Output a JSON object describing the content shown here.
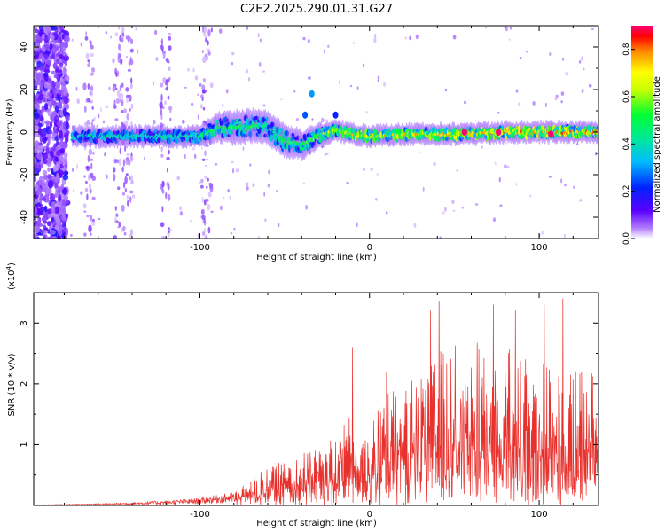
{
  "chart_data": [
    {
      "type": "heatmap",
      "title": "C2E2.2025.290.01.31.G27",
      "xlabel": "Height of straight line (km)",
      "ylabel": "Frequency (Hz)",
      "xlim": [
        -198,
        135
      ],
      "ylim": [
        -50,
        50
      ],
      "x_ticks": [
        -100,
        0,
        100
      ],
      "y_ticks": [
        -40,
        -20,
        0,
        20,
        40
      ],
      "colorbar": {
        "label": "Normalized spectral amplitude",
        "range": [
          0.0,
          0.9
        ],
        "ticks": [
          0.0,
          0.2,
          0.4,
          0.6,
          0.8
        ],
        "tick_labels": [
          "0.0",
          "0.2",
          "0.4",
          "0.6",
          "0.8"
        ]
      },
      "ridge": {
        "start_x": -175,
        "x": [
          -175,
          -150,
          -120,
          -100,
          -90,
          -80,
          -70,
          -60,
          -50,
          -40,
          -30,
          -20,
          -10,
          0,
          20,
          40,
          60,
          80,
          100,
          120,
          135
        ],
        "center_hz": [
          -2,
          -2,
          -2,
          -2,
          2,
          2,
          3,
          2,
          -4,
          -6,
          -2,
          1,
          -1,
          -2,
          -1,
          -1,
          -1,
          0,
          0,
          0,
          0
        ],
        "halfwidth_hz": [
          3,
          3,
          3,
          3,
          5,
          6,
          6,
          6,
          6,
          5,
          4,
          3,
          3,
          3,
          3,
          3,
          3,
          3,
          3,
          3,
          3
        ],
        "peak_amplitude": [
          0.45,
          0.45,
          0.45,
          0.5,
          0.55,
          0.55,
          0.55,
          0.5,
          0.55,
          0.55,
          0.6,
          0.7,
          0.75,
          0.75,
          0.75,
          0.75,
          0.8,
          0.8,
          0.8,
          0.8,
          0.8
        ]
      },
      "features": [
        {
          "x": -34,
          "y_hz": 18,
          "amplitude": 0.3,
          "note": "isolated blob"
        },
        {
          "x": -38,
          "y_hz": 8,
          "amplitude": 0.25,
          "note": "faint streak"
        },
        {
          "x": -20,
          "y_hz": 8,
          "amplitude": 0.2,
          "note": "faint streak"
        },
        {
          "x": 56,
          "y_hz": 0,
          "amplitude": 0.9,
          "note": "red peak"
        },
        {
          "x": 76,
          "y_hz": 0,
          "amplitude": 0.9,
          "note": "red peak"
        },
        {
          "x": 107,
          "y_hz": -1,
          "amplitude": 0.9,
          "note": "red peak"
        }
      ],
      "noise_region_x": [
        -198,
        -178
      ],
      "noise_columns_x": [
        -165,
        -148,
        -143,
        -120,
        -96
      ]
    },
    {
      "type": "line",
      "xlabel": "Height of straight line (km)",
      "ylabel": "SNR (10 * v/v)",
      "multiplier_label": "(x10",
      "multiplier_exp": "4",
      "multiplier_close": ")",
      "xlim": [
        -198,
        135
      ],
      "ylim": [
        0,
        3.5
      ],
      "x_ticks": [
        -100,
        0,
        100
      ],
      "y_ticks": [
        1,
        2,
        3
      ],
      "color": "#e8302c",
      "envelope_x": [
        -198,
        -150,
        -120,
        -100,
        -80,
        -70,
        -50,
        -35,
        -20,
        -10,
        0,
        10,
        20,
        40,
        60,
        80,
        100,
        120,
        135
      ],
      "envelope_y": [
        0.01,
        0.04,
        0.08,
        0.12,
        0.22,
        0.45,
        0.8,
        0.9,
        1.2,
        1.5,
        1.3,
        1.9,
        2.1,
        2.6,
        2.7,
        2.6,
        2.4,
        2.2,
        2.4
      ],
      "peaks": [
        {
          "x": -10,
          "y": 2.6
        },
        {
          "x": 10,
          "y": 2.2
        },
        {
          "x": 36,
          "y": 3.2
        },
        {
          "x": 41,
          "y": 3.35
        },
        {
          "x": 73,
          "y": 3.3
        },
        {
          "x": 86,
          "y": 3.2
        },
        {
          "x": 103,
          "y": 3.3
        },
        {
          "x": 114,
          "y": 3.4
        }
      ]
    }
  ]
}
